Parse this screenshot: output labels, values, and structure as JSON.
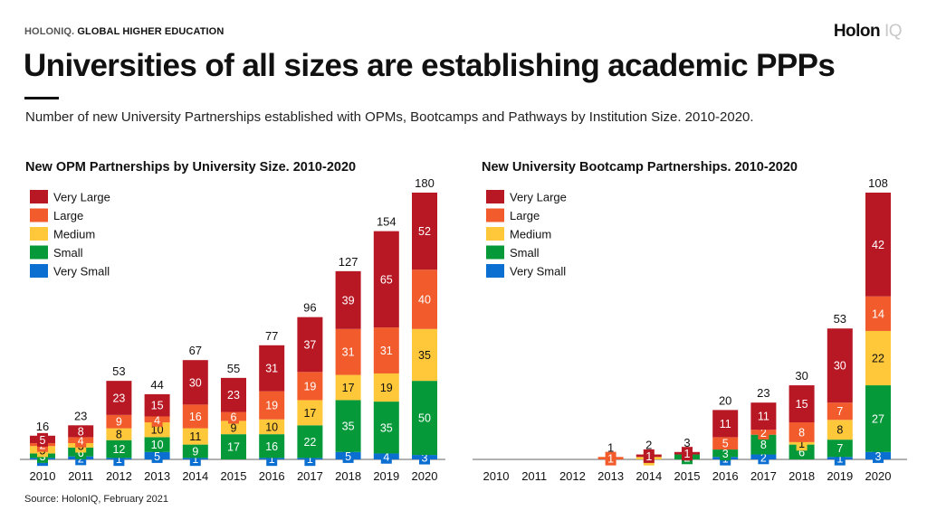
{
  "header": {
    "kicker_brand": "HOLONIQ.",
    "kicker_section": "GLOBAL HIGHER EDUCATION",
    "logo_main": "Holon",
    "logo_suffix": "IQ",
    "title": "Universities of all sizes are establishing academic PPPs",
    "subtitle": "Number of new University Partnerships established with OPMs, Bootcamps and Pathways by Institution Size. 2010-2020."
  },
  "footer": {
    "source": "Source: HolonIQ, February 2021"
  },
  "colors": {
    "very_large": "#B81824",
    "large": "#F25C2C",
    "medium": "#FFC73A",
    "small": "#05993A",
    "very_small": "#0A6FD1"
  },
  "chart_data": [
    {
      "type": "bar",
      "stacked": true,
      "title": "New OPM Partnerships by University Size. 2010-2020",
      "xlabel": "",
      "ylabel": "",
      "legend_position": "top-left",
      "grid": false,
      "categories": [
        "2010",
        "2011",
        "2012",
        "2013",
        "2014",
        "2015",
        "2016",
        "2017",
        "2018",
        "2019",
        "2020"
      ],
      "series": [
        {
          "name": "Very Small",
          "key": "very_small",
          "values": [
            1,
            2,
            1,
            5,
            1,
            0,
            1,
            1,
            5,
            4,
            3
          ]
        },
        {
          "name": "Small",
          "key": "small",
          "values": [
            3,
            6,
            12,
            10,
            9,
            17,
            16,
            22,
            35,
            35,
            50
          ]
        },
        {
          "name": "Medium",
          "key": "medium",
          "values": [
            5,
            3,
            8,
            10,
            11,
            9,
            10,
            17,
            17,
            19,
            35
          ]
        },
        {
          "name": "Large",
          "key": "large",
          "values": [
            2,
            4,
            9,
            4,
            16,
            6,
            19,
            19,
            31,
            31,
            40
          ]
        },
        {
          "name": "Very Large",
          "key": "very_large",
          "values": [
            5,
            8,
            23,
            15,
            30,
            23,
            31,
            37,
            39,
            65,
            52
          ]
        }
      ],
      "totals": [
        16,
        23,
        53,
        44,
        67,
        55,
        77,
        96,
        127,
        154,
        180
      ],
      "ylim": [
        0,
        180
      ]
    },
    {
      "type": "bar",
      "stacked": true,
      "title": "New University Bootcamp Partnerships. 2010-2020",
      "xlabel": "",
      "ylabel": "",
      "legend_position": "top-left",
      "grid": false,
      "categories": [
        "2010",
        "2011",
        "2012",
        "2013",
        "2014",
        "2015",
        "2016",
        "2017",
        "2018",
        "2019",
        "2020"
      ],
      "series": [
        {
          "name": "Very Small",
          "key": "very_small",
          "values": [
            0,
            0,
            0,
            0,
            0,
            0,
            1,
            2,
            0,
            1,
            3
          ]
        },
        {
          "name": "Small",
          "key": "small",
          "values": [
            0,
            0,
            0,
            0,
            0,
            2,
            3,
            8,
            6,
            7,
            27
          ]
        },
        {
          "name": "Medium",
          "key": "medium",
          "values": [
            0,
            0,
            0,
            0,
            1,
            0,
            0,
            0,
            1,
            8,
            22
          ]
        },
        {
          "name": "Large",
          "key": "large",
          "values": [
            0,
            0,
            0,
            1,
            0,
            0,
            5,
            2,
            8,
            7,
            14
          ]
        },
        {
          "name": "Very Large",
          "key": "very_large",
          "values": [
            0,
            0,
            0,
            0,
            1,
            1,
            11,
            11,
            15,
            30,
            42
          ]
        }
      ],
      "totals": [
        0,
        0,
        0,
        1,
        2,
        3,
        20,
        23,
        30,
        53,
        108
      ],
      "ylim": [
        0,
        108
      ]
    }
  ]
}
